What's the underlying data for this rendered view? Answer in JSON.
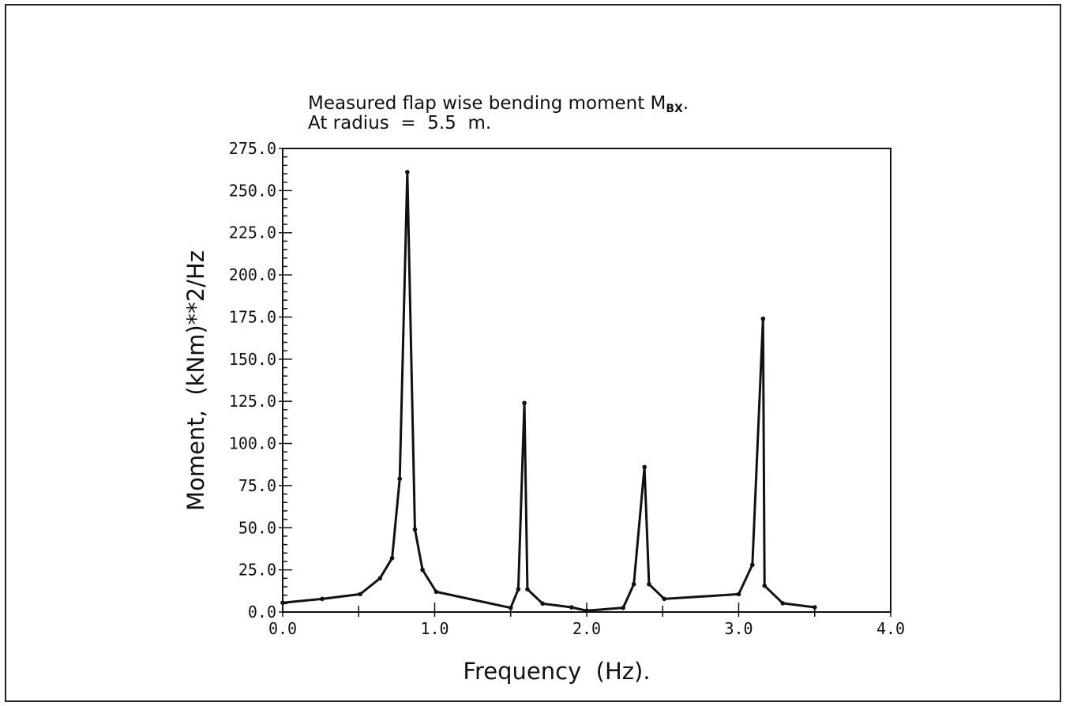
{
  "chart_data": {
    "type": "line",
    "title_lines": [
      "Measured flap wise bending moment M",
      "At radius  =  5.5  m."
    ],
    "title_subscript": "BX",
    "title_suffix": ".",
    "xlabel": "Frequency  (Hz).",
    "ylabel": "Moment,  (kNm)**2/Hz",
    "xlim": [
      0,
      4
    ],
    "ylim": [
      0,
      275
    ],
    "x_ticks": [
      "0.0",
      "1.0",
      "2.0",
      "3.0",
      "4.0"
    ],
    "y_ticks": [
      "0.0",
      "25.0",
      "50.0",
      "75.0",
      "100.0",
      "125.0",
      "150.0",
      "175.0",
      "200.0",
      "225.0",
      "250.0",
      "275.0"
    ],
    "grid": false,
    "markers": true,
    "line_color": "#111111",
    "x": [
      0.0,
      0.26,
      0.51,
      0.64,
      0.72,
      0.77,
      0.82,
      0.87,
      0.92,
      1.01,
      1.5,
      1.55,
      1.59,
      1.61,
      1.71,
      1.9,
      2.0,
      2.24,
      2.31,
      2.38,
      2.41,
      2.51,
      3.0,
      3.09,
      3.16,
      3.17,
      3.29,
      3.5
    ],
    "y": [
      5.5,
      7.8,
      10.6,
      20,
      32,
      79,
      261,
      49,
      25,
      12,
      2.5,
      13.5,
      124,
      13.5,
      5,
      2.8,
      0.8,
      2.5,
      16.5,
      86,
      16.5,
      7.8,
      10.6,
      28,
      174,
      15.6,
      5.2,
      2.8
    ]
  }
}
